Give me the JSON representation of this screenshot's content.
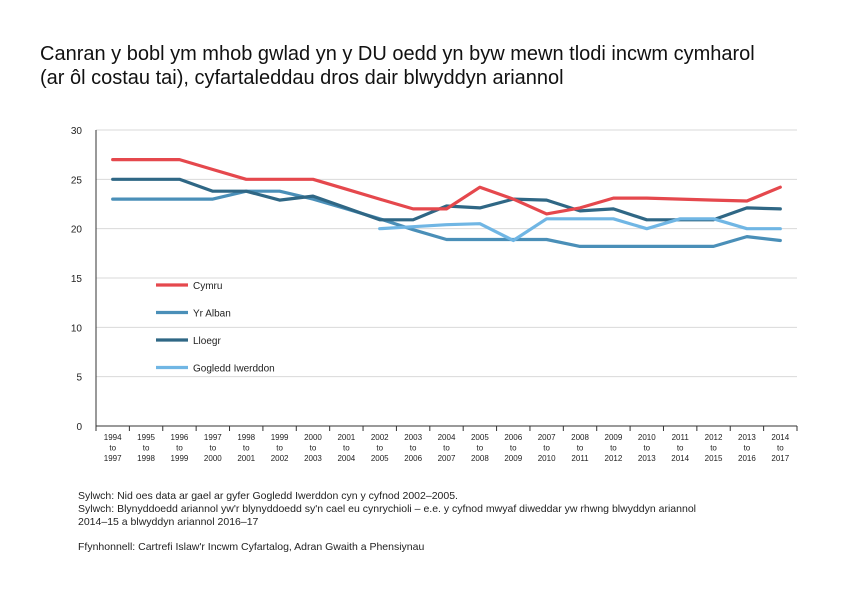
{
  "title_lines": [
    "Canran y bobl ym mhob gwlad yn y DU oedd yn byw mewn tlodi incwm cymharol",
    "(ar ôl costau tai), cyfartaleddau dros dair blwyddyn ariannol"
  ],
  "chart_data": {
    "type": "line",
    "title": "Canran y bobl ym mhob gwlad yn y DU oedd yn byw mewn tlodi incwm cymharol (ar ôl costau tai), cyfartaleddau dros dair blwyddyn ariannol",
    "categories": [
      [
        "1994",
        "to",
        "1997"
      ],
      [
        "1995",
        "to",
        "1998"
      ],
      [
        "1996",
        "to",
        "1999"
      ],
      [
        "1997",
        "to",
        "2000"
      ],
      [
        "1998",
        "to",
        "2001"
      ],
      [
        "1999",
        "to",
        "2002"
      ],
      [
        "2000",
        "to",
        "2003"
      ],
      [
        "2001",
        "to",
        "2004"
      ],
      [
        "2002",
        "to",
        "2005"
      ],
      [
        "2003",
        "to",
        "2006"
      ],
      [
        "2004",
        "to",
        "2007"
      ],
      [
        "2005",
        "to",
        "2008"
      ],
      [
        "2006",
        "to",
        "2009"
      ],
      [
        "2007",
        "to",
        "2010"
      ],
      [
        "2008",
        "to",
        "2011"
      ],
      [
        "2009",
        "to",
        "2012"
      ],
      [
        "2010",
        "to",
        "2013"
      ],
      [
        "2011",
        "to",
        "2014"
      ],
      [
        "2012",
        "to",
        "2015"
      ],
      [
        "2013",
        "to",
        "2016"
      ],
      [
        "2014",
        "to",
        "2017"
      ]
    ],
    "ylim": [
      0,
      30
    ],
    "yticks": [
      0,
      5,
      10,
      15,
      20,
      25,
      30
    ],
    "grid": true,
    "legend_position": "left",
    "series": [
      {
        "name": "Cymru",
        "color": "#e5484d",
        "values": [
          27,
          27,
          27,
          26,
          25,
          25,
          25,
          24,
          23,
          22,
          22,
          24.2,
          23,
          21.5,
          22.1,
          23.1,
          23.1,
          23,
          22.9,
          22.8,
          24.2
        ]
      },
      {
        "name": "Yr Alban",
        "color": "#4a8fb8",
        "values": [
          23,
          23,
          23,
          23,
          23.8,
          23.8,
          23,
          22,
          21,
          19.9,
          18.9,
          18.9,
          18.9,
          18.9,
          18.2,
          18.2,
          18.2,
          18.2,
          18.2,
          19.2,
          18.8
        ]
      },
      {
        "name": "Lloegr",
        "color": "#2f6785",
        "values": [
          25,
          25,
          25,
          23.8,
          23.8,
          22.9,
          23.3,
          22.1,
          20.9,
          20.9,
          22.3,
          22.1,
          23,
          22.9,
          21.8,
          22,
          20.9,
          20.9,
          20.9,
          22.1,
          22
        ]
      },
      {
        "name": "Gogledd Iwerddon",
        "color": "#70b6e4",
        "values": [
          null,
          null,
          null,
          null,
          null,
          null,
          null,
          null,
          20,
          20.2,
          20.4,
          20.5,
          18.8,
          21,
          21,
          21,
          20,
          21,
          21,
          20,
          20
        ]
      }
    ]
  },
  "notes": [
    "Sylwch: Nid oes data ar gael ar gyfer Gogledd Iwerddon cyn y cyfnod 2002–2005.",
    "Sylwch: Blynyddoedd ariannol yw'r blynyddoedd sy'n cael eu cynrychioli – e.e. y cyfnod mwyaf diweddar yw rhwng blwyddyn ariannol",
    "2014–15 a blwyddyn ariannol 2016–17"
  ],
  "source": "Ffynhonnell: Cartrefi Islaw'r Incwm Cyfartalog, Adran Gwaith a Phensiynau"
}
